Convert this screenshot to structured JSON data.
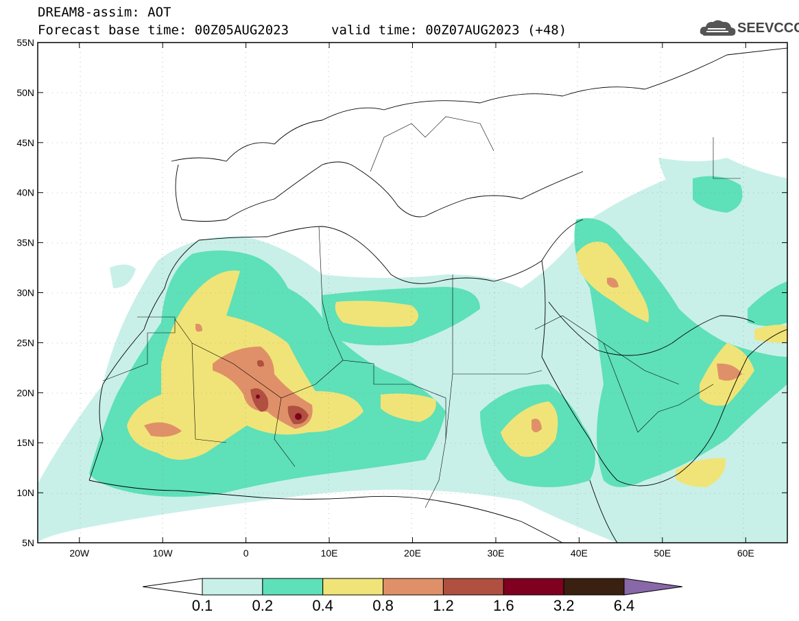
{
  "header": {
    "line1": "DREAM8-assim: AOT",
    "line2": "Forecast base time: 00Z05AUG2023",
    "line2b": "valid time: 00Z07AUG2023 (+48)",
    "logo_text": "SEEVCCC"
  },
  "map": {
    "lon_range": [
      -25,
      65
    ],
    "lat_range": [
      5,
      55
    ],
    "x_ticks": [
      "20W",
      "10W",
      "0",
      "10E",
      "20E",
      "30E",
      "40E",
      "50E",
      "60E"
    ],
    "y_ticks": [
      "5N",
      "10N",
      "15N",
      "20N",
      "25N",
      "30N",
      "35N",
      "40N",
      "45N",
      "50N",
      "55N"
    ]
  },
  "colorbar": {
    "labels": [
      "0.1",
      "0.2",
      "0.4",
      "0.8",
      "1.2",
      "1.6",
      "3.2",
      "6.4"
    ],
    "colors": [
      "#ffffff",
      "#c8f0e8",
      "#5ee0b8",
      "#f0e478",
      "#e09068",
      "#b05040",
      "#800020",
      "#3a2010",
      "#8868a8"
    ]
  }
}
